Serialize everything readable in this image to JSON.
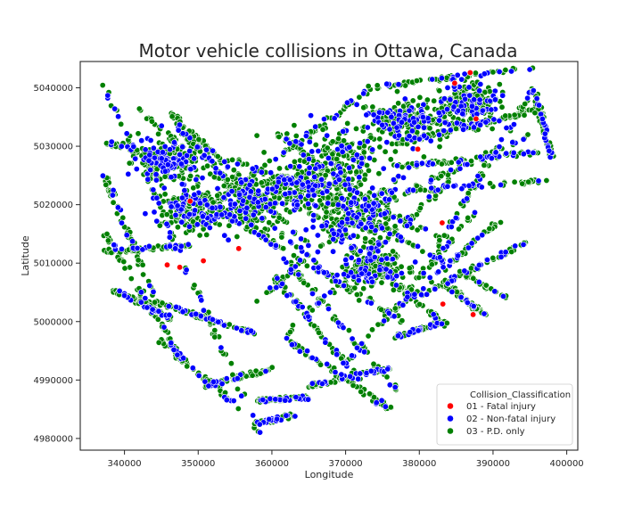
{
  "chart_data": {
    "type": "scatter",
    "title": "Motor vehicle collisions in Ottawa, Canada",
    "xlabel": "Longitude",
    "ylabel": "Latitude",
    "xlim": [
      334000,
      401500
    ],
    "ylim": [
      4978000,
      5044500
    ],
    "xticks": [
      340000,
      350000,
      360000,
      370000,
      380000,
      390000,
      400000
    ],
    "xtick_labels": [
      "340000",
      "350000",
      "360000",
      "370000",
      "380000",
      "390000",
      "400000"
    ],
    "yticks": [
      4980000,
      4990000,
      5000000,
      5010000,
      5020000,
      5030000,
      5040000
    ],
    "ytick_labels": [
      "4980000",
      "4990000",
      "5000000",
      "5010000",
      "5020000",
      "5030000",
      "5040000"
    ],
    "grid": false,
    "legend": {
      "title": "Collision_Classification",
      "placement": "lower-right"
    },
    "series": [
      {
        "name": "01 - Fatal injury",
        "color": "#ff0000",
        "points": [
          [
            384800,
            5040800
          ],
          [
            386900,
            5042600
          ],
          [
            383100,
            5016900
          ],
          [
            383200,
            5003000
          ],
          [
            387300,
            5001200
          ],
          [
            355500,
            5012500
          ],
          [
            350700,
            5010400
          ],
          [
            347500,
            5009300
          ],
          [
            345800,
            5009700
          ],
          [
            348900,
            5020600
          ],
          [
            387700,
            5034700
          ],
          [
            379800,
            5029500
          ]
        ]
      },
      {
        "name": "02 - Non-fatal injury",
        "color": "#0000ff",
        "samples": 1200,
        "seed": 7
      },
      {
        "name": "03 - P.D. only",
        "color": "#008000",
        "samples": 3400,
        "seed": 11
      }
    ],
    "corridors": [
      [
        337300,
        5040500,
        358300,
        4981000
      ],
      [
        337300,
        5025000,
        344000,
        5004000
      ],
      [
        337500,
        5015000,
        348000,
        4993000
      ],
      [
        340500,
        5038000,
        369500,
        5006000
      ],
      [
        346000,
        5036000,
        366000,
        5012000
      ],
      [
        338500,
        5005500,
        346500,
        5000500
      ],
      [
        347000,
        5034000,
        356000,
        5021000
      ],
      [
        343800,
        5003500,
        357500,
        4998000
      ],
      [
        344500,
        4997000,
        356000,
        4985000
      ],
      [
        351000,
        4989000,
        360000,
        4992000
      ],
      [
        358000,
        4982500,
        363000,
        4984000
      ],
      [
        358000,
        4986500,
        365000,
        4987000
      ],
      [
        353000,
        5021000,
        373500,
        5040000
      ],
      [
        373500,
        5040000,
        395500,
        5043500
      ],
      [
        377000,
        5030500,
        395500,
        5036000
      ],
      [
        377000,
        5026500,
        396000,
        5029000
      ],
      [
        374000,
        5022000,
        397000,
        5024000
      ],
      [
        371000,
        5018000,
        395000,
        5032000
      ],
      [
        382000,
        5012000,
        395500,
        5040000
      ],
      [
        395500,
        5040000,
        398000,
        5028000
      ],
      [
        358000,
        5003500,
        378000,
        5025500
      ],
      [
        362000,
        4998000,
        384500,
        5024500
      ],
      [
        370000,
        4993000,
        387500,
        5018500
      ],
      [
        375000,
        5000000,
        392000,
        5018500
      ],
      [
        380000,
        5004500,
        394500,
        5013500
      ],
      [
        355000,
        5020500,
        377000,
        4988500
      ],
      [
        363000,
        5021000,
        384000,
        4999000
      ],
      [
        368500,
        5020500,
        392000,
        5004000
      ],
      [
        360000,
        5008000,
        372000,
        4990000
      ],
      [
        362000,
        4997000,
        376000,
        4985000
      ],
      [
        365000,
        4989000,
        376000,
        4992000
      ],
      [
        377000,
        4997500,
        383500,
        5000000
      ],
      [
        383000,
        5007000,
        389000,
        5001000
      ],
      [
        350000,
        5021000,
        378000,
        5000000
      ],
      [
        354000,
        5028000,
        382000,
        5015000
      ],
      [
        345000,
        5025000,
        372000,
        5023000
      ],
      [
        361000,
        5032000,
        376000,
        5018000
      ],
      [
        374000,
        5036000,
        388000,
        5033000
      ],
      [
        337300,
        5012000,
        349000,
        5013000
      ],
      [
        336700,
        5031000,
        350000,
        5026000
      ]
    ],
    "clusters": [
      [
        369500,
        5028500,
        5200,
        3800
      ],
      [
        357000,
        5020500,
        4200,
        3000
      ],
      [
        349000,
        5019000,
        3200,
        2800
      ],
      [
        378500,
        5034500,
        4000,
        2600
      ],
      [
        371500,
        5017500,
        4000,
        3200
      ],
      [
        387000,
        5037500,
        3000,
        2200
      ],
      [
        364000,
        5023000,
        3500,
        2500
      ],
      [
        345500,
        5027500,
        2500,
        2500
      ],
      [
        374000,
        5009500,
        3000,
        3000
      ]
    ]
  }
}
